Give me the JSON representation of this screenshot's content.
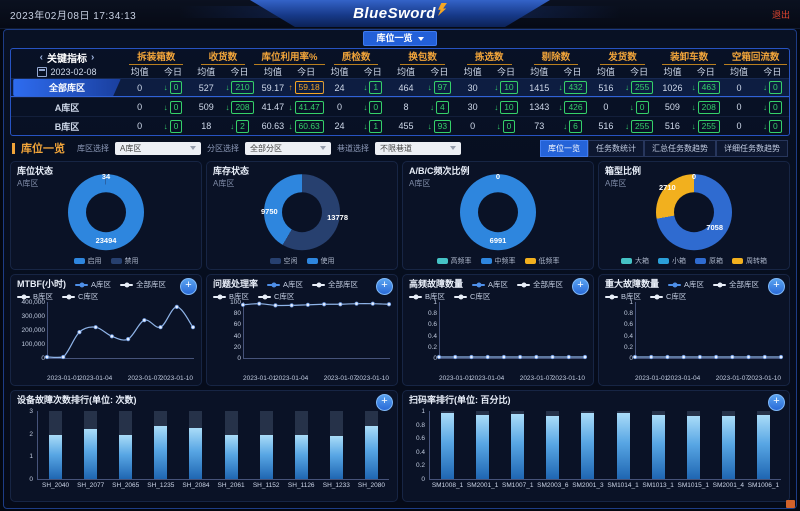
{
  "colors": {
    "accent": "#f0a43a",
    "positive_green": "#35d06a",
    "alert_up_orange": "#f5a623",
    "primary_blue": "#2e86de",
    "logout_red": "#e0452f"
  },
  "header": {
    "datetime": "2023年02月08日 17:34:13",
    "logo": "BlueSword",
    "logout": "退出",
    "view_tab": "库位一览"
  },
  "kpi_table": {
    "title": "关键指标",
    "prev": "‹",
    "next": "›",
    "date": "2023-02-08",
    "subheaders": [
      "均值",
      "今日"
    ],
    "columns": [
      "拆装箱数",
      "收货数",
      "库位利用率%",
      "质检数",
      "换包数",
      "拣选数",
      "剔除数",
      "发货数",
      "装卸车数",
      "空箱回流数"
    ],
    "rows": [
      {
        "label": "全部库区",
        "highlight": true,
        "cells": [
          {
            "avg": "0",
            "today": "0",
            "trend": "down"
          },
          {
            "avg": "527",
            "today": "210",
            "trend": "down"
          },
          {
            "avg": "59.17",
            "today": "59.18",
            "trend": "up"
          },
          {
            "avg": "24",
            "today": "1",
            "trend": "down"
          },
          {
            "avg": "464",
            "today": "97",
            "trend": "down"
          },
          {
            "avg": "30",
            "today": "10",
            "trend": "down"
          },
          {
            "avg": "1415",
            "today": "432",
            "trend": "down"
          },
          {
            "avg": "516",
            "today": "255",
            "trend": "down"
          },
          {
            "avg": "1026",
            "today": "463",
            "trend": "down"
          },
          {
            "avg": "0",
            "today": "0",
            "trend": "down"
          }
        ]
      },
      {
        "label": "A库区",
        "highlight": false,
        "cells": [
          {
            "avg": "0",
            "today": "0",
            "trend": "down"
          },
          {
            "avg": "509",
            "today": "208",
            "trend": "down"
          },
          {
            "avg": "41.47",
            "today": "41.47",
            "trend": "down"
          },
          {
            "avg": "0",
            "today": "0",
            "trend": "down"
          },
          {
            "avg": "8",
            "today": "4",
            "trend": "down"
          },
          {
            "avg": "30",
            "today": "10",
            "trend": "down"
          },
          {
            "avg": "1343",
            "today": "426",
            "trend": "down"
          },
          {
            "avg": "0",
            "today": "0",
            "trend": "down"
          },
          {
            "avg": "509",
            "today": "208",
            "trend": "down"
          },
          {
            "avg": "0",
            "today": "0",
            "trend": "down"
          }
        ]
      },
      {
        "label": "B库区",
        "highlight": false,
        "cells": [
          {
            "avg": "0",
            "today": "0",
            "trend": "down"
          },
          {
            "avg": "18",
            "today": "2",
            "trend": "down"
          },
          {
            "avg": "60.63",
            "today": "60.63",
            "trend": "down"
          },
          {
            "avg": "24",
            "today": "1",
            "trend": "down"
          },
          {
            "avg": "455",
            "today": "93",
            "trend": "down"
          },
          {
            "avg": "0",
            "today": "0",
            "trend": "down"
          },
          {
            "avg": "73",
            "today": "6",
            "trend": "down"
          },
          {
            "avg": "516",
            "today": "255",
            "trend": "down"
          },
          {
            "avg": "516",
            "today": "255",
            "trend": "down"
          },
          {
            "avg": "0",
            "today": "0",
            "trend": "down"
          }
        ]
      }
    ]
  },
  "filters": {
    "title": "库位一览",
    "fields": [
      {
        "label": "库区选择",
        "value": "A库区"
      },
      {
        "label": "分区选择",
        "value": "全部分区"
      },
      {
        "label": "巷道选择",
        "value": "不限巷道"
      }
    ],
    "view_tabs": [
      {
        "label": "库位一览",
        "active": true
      },
      {
        "label": "任务数统计",
        "active": false
      },
      {
        "label": "汇总任务数趋势",
        "active": false
      },
      {
        "label": "详细任务数趋势",
        "active": false
      }
    ]
  },
  "chart_data": [
    {
      "type": "pie",
      "title": "库位状态",
      "subtitle": "A库区",
      "segments": [
        {
          "name": "启用",
          "value": 23494,
          "color": "#2e86de"
        },
        {
          "name": "禁用",
          "value": 34,
          "color": "#27406f"
        }
      ],
      "labels": [
        {
          "text": "34",
          "pos": "top"
        },
        {
          "text": "23494",
          "pos": "bottom"
        }
      ]
    },
    {
      "type": "pie",
      "title": "库存状态",
      "subtitle": "A库区",
      "segments": [
        {
          "name": "空闲",
          "value": 13778,
          "color": "#27406f"
        },
        {
          "name": "使用",
          "value": 9750,
          "color": "#2e86de"
        }
      ],
      "labels": [
        {
          "text": "9750",
          "pos": "left"
        },
        {
          "text": "13778",
          "pos": "right"
        }
      ]
    },
    {
      "type": "pie",
      "title": "A/B/C频次比例",
      "subtitle": "A库区",
      "segments": [
        {
          "name": "高频率",
          "value": 0,
          "color": "#45c2c5"
        },
        {
          "name": "中频率",
          "value": 6991,
          "color": "#2e86de"
        },
        {
          "name": "低频率",
          "value": 0,
          "color": "#f2b01e"
        }
      ],
      "labels": [
        {
          "text": "0",
          "pos": "top"
        },
        {
          "text": "6991",
          "pos": "bottom"
        }
      ]
    },
    {
      "type": "pie",
      "title": "箱型比例",
      "subtitle": "A库区",
      "segments": [
        {
          "name": "大箱",
          "value": 0,
          "color": "#45c2c5"
        },
        {
          "name": "小箱",
          "value": 0,
          "color": "#2b9fd8"
        },
        {
          "name": "原箱",
          "value": 7058,
          "color": "#2f6bd0"
        },
        {
          "name": "周转箱",
          "value": 2710,
          "color": "#f2b01e"
        }
      ],
      "labels": [
        {
          "text": "0",
          "pos": "top"
        },
        {
          "text": "2710",
          "pos": "top-left"
        },
        {
          "text": "7058",
          "pos": "bottom-right"
        }
      ]
    },
    {
      "type": "line",
      "title": "MTBF(小时)",
      "legend": [
        {
          "name": "A库区",
          "color": "#4e8fe8"
        },
        {
          "name": "全部库区",
          "color": "#e8eef8"
        },
        {
          "name": "B库区",
          "color": "#e8eef8"
        },
        {
          "name": "C库区",
          "color": "#e8eef8"
        }
      ],
      "ylim": [
        0,
        400000
      ],
      "y_ticks": [
        "400,000",
        "300,000",
        "200,000",
        "100,000",
        "0"
      ],
      "x_ticks": [
        "2023-01-01",
        "2023-01-04",
        "2023-01-07",
        "2023-01-10"
      ],
      "values": [
        0,
        0,
        185000,
        220000,
        155000,
        135000,
        270000,
        220000,
        365000,
        220000
      ]
    },
    {
      "type": "line",
      "title": "问题处理率",
      "legend": [
        {
          "name": "A库区",
          "color": "#4e8fe8"
        },
        {
          "name": "全部库区",
          "color": "#e8eef8"
        },
        {
          "name": "B库区",
          "color": "#e8eef8"
        },
        {
          "name": "C库区",
          "color": "#e8eef8"
        }
      ],
      "ylim": [
        0,
        100
      ],
      "y_ticks": [
        "100",
        "80",
        "60",
        "40",
        "20",
        "0"
      ],
      "x_ticks": [
        "2023-01-01",
        "2023-01-04",
        "2023-01-07",
        "2023-01-10"
      ],
      "values": [
        95,
        97,
        94,
        94,
        95,
        96,
        96,
        97,
        97,
        96
      ]
    },
    {
      "type": "line",
      "title": "高频故障数量",
      "legend": [
        {
          "name": "A库区",
          "color": "#4e8fe8"
        },
        {
          "name": "全部库区",
          "color": "#e8eef8"
        },
        {
          "name": "B库区",
          "color": "#e8eef8"
        },
        {
          "name": "C库区",
          "color": "#e8eef8"
        }
      ],
      "ylim": [
        0,
        1
      ],
      "y_ticks": [
        "1",
        "0.8",
        "0.6",
        "0.4",
        "0.2",
        "0"
      ],
      "x_ticks": [
        "2023-01-01",
        "2023-01-04",
        "2023-01-07",
        "2023-01-10"
      ],
      "values": [
        0,
        0,
        0,
        0,
        0,
        0,
        0,
        0,
        0,
        0
      ]
    },
    {
      "type": "line",
      "title": "重大故障数量",
      "legend": [
        {
          "name": "A库区",
          "color": "#4e8fe8"
        },
        {
          "name": "全部库区",
          "color": "#e8eef8"
        },
        {
          "name": "B库区",
          "color": "#e8eef8"
        },
        {
          "name": "C库区",
          "color": "#e8eef8"
        }
      ],
      "ylim": [
        0,
        1
      ],
      "y_ticks": [
        "1",
        "0.8",
        "0.6",
        "0.4",
        "0.2",
        "0"
      ],
      "x_ticks": [
        "2023-01-01",
        "2023-01-04",
        "2023-01-07",
        "2023-01-10"
      ],
      "values": [
        0,
        0,
        0,
        0,
        0,
        0,
        0,
        0,
        0,
        0
      ]
    },
    {
      "type": "bar",
      "title": "设备故障次数排行(单位: 次数)",
      "categories": [
        "SH_2040",
        "SH_2077",
        "SH_2065",
        "SH_1235",
        "SH_2084",
        "SH_2061",
        "SH_1152",
        "SH_1126",
        "SH_1233",
        "SH_2080"
      ],
      "values": [
        1.95,
        2.2,
        1.95,
        2.35,
        2.25,
        1.95,
        1.95,
        1.95,
        1.9,
        2.35
      ],
      "ylim": [
        0,
        3
      ],
      "y_ticks": [
        "3",
        "2",
        "1",
        "0"
      ]
    },
    {
      "type": "bar",
      "title": "扫码率排行(单位: 百分比)",
      "categories": [
        "SM1008_1",
        "SM2001_1",
        "SM1007_1",
        "SM2003_6",
        "SM2001_3",
        "SM1014_1",
        "SM1013_1",
        "SM1015_1",
        "SM2001_4",
        "SM1006_1"
      ],
      "values": [
        0.97,
        0.94,
        0.95,
        0.92,
        0.97,
        0.97,
        0.94,
        0.92,
        0.93,
        0.94
      ],
      "ylim": [
        0,
        1
      ],
      "y_ticks": [
        "1",
        "0.8",
        "0.6",
        "0.4",
        "0.2",
        "0"
      ]
    }
  ]
}
